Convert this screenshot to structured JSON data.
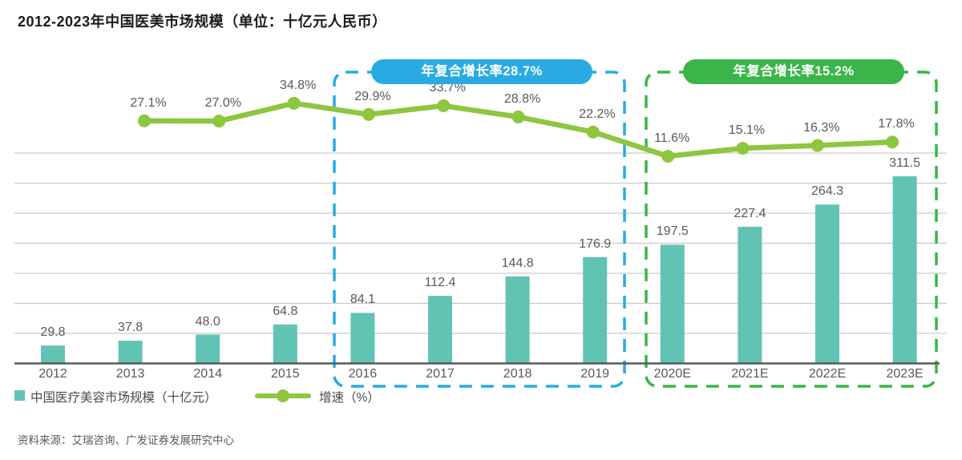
{
  "title": "2012-2023年中国医美市场规模（单位：十亿元人民币）",
  "source": "资料来源：艾瑞咨询、广发证券发展研究中心",
  "legend": {
    "bars_label": "中国医疗美容市场规模（十亿元）",
    "line_label": "增速（%）"
  },
  "annotations": {
    "cagr_left": {
      "label": "年复合增长率28.7%",
      "color": "#29ABE2",
      "period": "2016-2019"
    },
    "cagr_right": {
      "label": "年复合增长率15.2%",
      "color": "#39B54A",
      "period": "2020E-2023E"
    }
  },
  "colors": {
    "bar": "#61C3B3",
    "line": "#8DC63F",
    "blue_box": "#29ABE2",
    "green_box": "#39B54A",
    "grid": "#C9C9C9",
    "axis": "#58595B",
    "label": "#58595B"
  },
  "chart_data": {
    "type": "bar",
    "title": "2012-2023年中国医美市场规模（单位：十亿元人民币）",
    "categories": [
      "2012",
      "2013",
      "2014",
      "2015",
      "2016",
      "2017",
      "2018",
      "2019",
      "2020E",
      "2021E",
      "2022E",
      "2023E"
    ],
    "series": [
      {
        "name": "中国医疗美容市场规模（十亿元）",
        "type": "bar",
        "values": [
          29.8,
          37.8,
          48.0,
          64.8,
          84.1,
          112.4,
          144.8,
          176.9,
          197.5,
          227.4,
          264.3,
          311.5
        ]
      },
      {
        "name": "增速（%）",
        "type": "line",
        "first_category": "2013",
        "values": [
          27.1,
          27.0,
          34.8,
          29.9,
          33.7,
          28.8,
          22.2,
          11.6,
          15.1,
          16.3,
          17.8
        ]
      }
    ],
    "xlabel": "",
    "ylabel": "",
    "ylim": [
      0,
      375
    ],
    "grid": "horizontal",
    "legend_position": "bottom-left",
    "annotations": [
      "年复合增长率28.7% (2016-2019)",
      "年复合增长率15.2% (2020E-2023E)"
    ]
  }
}
